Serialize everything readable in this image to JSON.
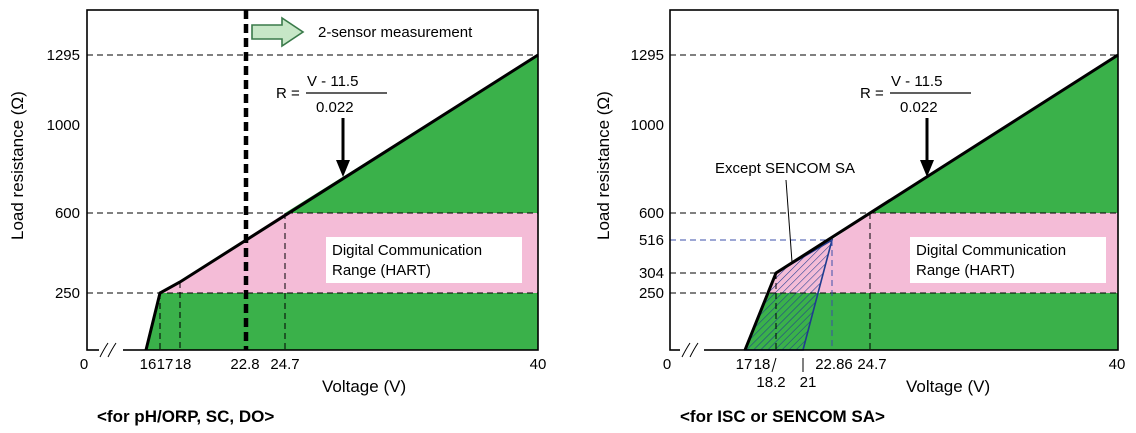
{
  "colors": {
    "green": "#3ab14a",
    "pink": "#f4bcd7",
    "hatch_blue": "#1f3c8f",
    "guide_blue": "#3b4fa8",
    "arrow_fill": "#c7e7c7",
    "arrow_stroke": "#3a7a4a"
  },
  "chart_data": [
    {
      "type": "area",
      "caption": "<for pH/ORP, SC, DO>",
      "xlabel": "Voltage (V)",
      "ylabel": "Load resistance (Ω)",
      "x_ticks": [
        "0",
        "16",
        "17",
        "18",
        "22.8",
        "24.7",
        "40"
      ],
      "y_ticks": [
        "1295",
        "1000",
        "600",
        "250"
      ],
      "formula": {
        "lhs": "R =",
        "numerator": "V - 11.5",
        "denominator": "0.022"
      },
      "region_label": [
        "Digital Communication",
        "Range (HART)"
      ],
      "arrow_label": "2-sensor measurement",
      "boundary": [
        {
          "x": 16,
          "y": 0
        },
        {
          "x": 17,
          "y": 250
        },
        {
          "x": 40,
          "y": 1295
        }
      ],
      "hart_range": {
        "y_min": 250,
        "y_max": 600
      },
      "vertical_marker_x": 22.8,
      "xlim": [
        15,
        40
      ],
      "ylim": [
        0,
        1400
      ]
    },
    {
      "type": "area",
      "caption": "<for ISC or SENCOM SA>",
      "xlabel": "Voltage (V)",
      "ylabel": "Load resistance (Ω)",
      "x_ticks": [
        "0",
        "17",
        "18",
        "18.2",
        "21",
        "22.86",
        "24.7",
        "40"
      ],
      "y_ticks": [
        "1295",
        "1000",
        "600",
        "516",
        "304",
        "250"
      ],
      "formula": {
        "lhs": "R =",
        "numerator": "V - 11.5",
        "denominator": "0.022"
      },
      "region_label": [
        "Digital Communication",
        "Range (HART)"
      ],
      "except_label": "Except SENCOM SA",
      "boundary": [
        {
          "x": 17,
          "y": 0
        },
        {
          "x": 18.2,
          "y": 304
        },
        {
          "x": 40,
          "y": 1295
        }
      ],
      "hatch_region": [
        {
          "x": 17,
          "y": 0
        },
        {
          "x": 18.2,
          "y": 304
        },
        {
          "x": 22.86,
          "y": 516
        },
        {
          "x": 21,
          "y": 0
        }
      ],
      "hart_range": {
        "y_min": 250,
        "y_max": 600
      },
      "xlim": [
        16,
        40
      ],
      "ylim": [
        0,
        1400
      ]
    }
  ]
}
